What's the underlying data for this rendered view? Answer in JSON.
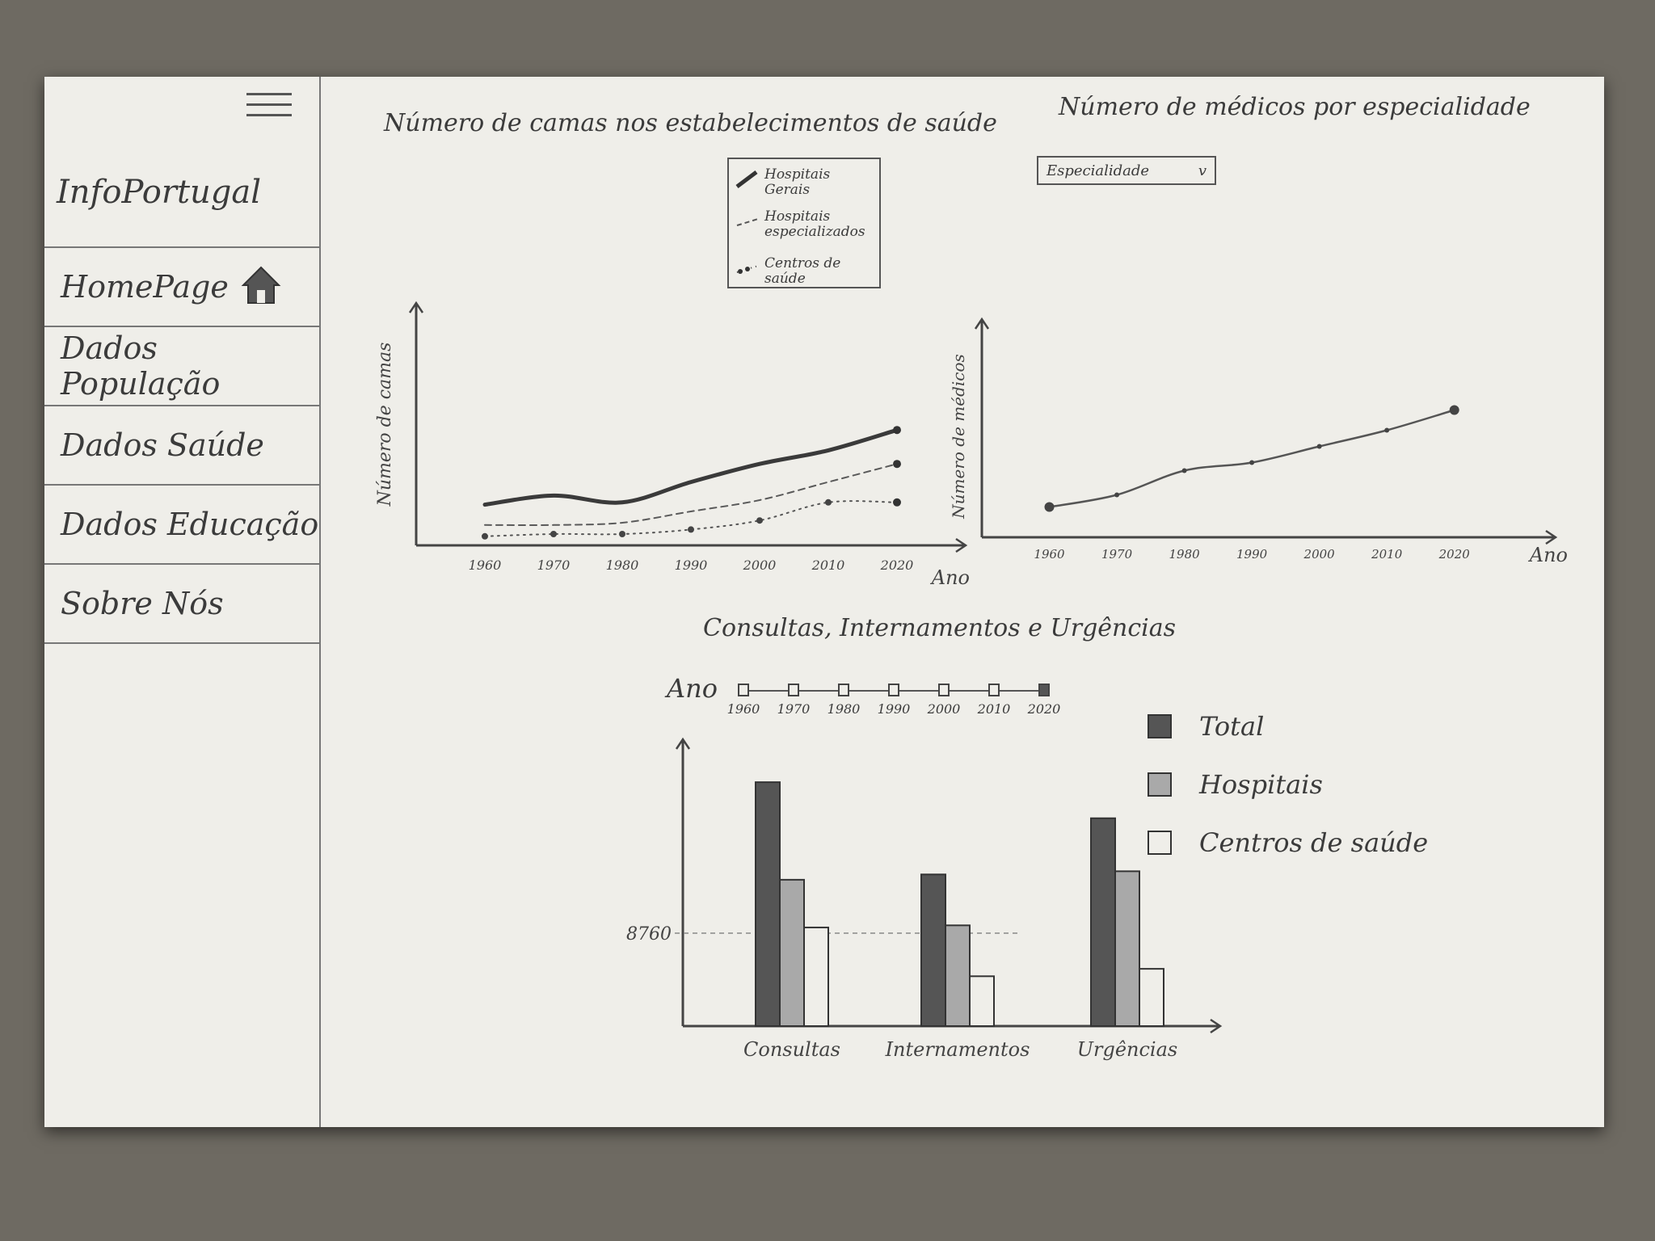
{
  "sidebar": {
    "brand": "InfoPortugal",
    "items": [
      {
        "label": "HomePage",
        "icon": "home-icon"
      },
      {
        "label": "Dados População"
      },
      {
        "label": "Dados Saúde"
      },
      {
        "label": "Dados Educação"
      },
      {
        "label": "Sobre Nós"
      }
    ]
  },
  "beds_chart": {
    "title": "Número de camas nos estabelecimentos de saúde",
    "legend": [
      "Hospitais Gerais",
      "Hospitais especializados",
      "Centros de saúde"
    ]
  },
  "doctors_chart": {
    "title": "Número de médicos por especialidade",
    "select_value": "Especialidade"
  },
  "bars_section": {
    "title": "Consultas, Internamentos e Urgências",
    "slider_label": "Ano",
    "years": [
      "1960",
      "1970",
      "1980",
      "1990",
      "2000",
      "2010",
      "2020"
    ],
    "selected_year": "2020",
    "legend": [
      "Total",
      "Hospitais",
      "Centros de saúde"
    ]
  },
  "colors": {
    "total": "#555555",
    "hospitais": "#a9a9a9",
    "centros": "#efeee9",
    "ink": "#3b3b3b"
  },
  "chart_data": [
    {
      "type": "line",
      "title": "Número de camas nos estabelecimentos de saúde",
      "xlabel": "Ano",
      "ylabel": "Número de camas",
      "x": [
        1960,
        1970,
        1980,
        1990,
        2000,
        2010,
        2020
      ],
      "xlim": [
        1950,
        2030
      ],
      "ylim": [
        0,
        100
      ],
      "legend_position": "top-right",
      "series": [
        {
          "name": "Hospitais Gerais",
          "style": "solid",
          "values": [
            18,
            22,
            19,
            28,
            36,
            42,
            51
          ]
        },
        {
          "name": "Hospitais especializados",
          "style": "dashed",
          "values": [
            9,
            9,
            10,
            15,
            20,
            28,
            36
          ]
        },
        {
          "name": "Centros de saúde",
          "style": "dotted",
          "values": [
            4,
            5,
            5,
            7,
            11,
            19,
            19
          ]
        }
      ]
    },
    {
      "type": "line",
      "title": "Número de médicos por especialidade",
      "xlabel": "Ano",
      "ylabel": "Número de médicos",
      "x": [
        1960,
        1970,
        1980,
        1990,
        2000,
        2010,
        2020
      ],
      "xlim": [
        1950,
        2035
      ],
      "ylim": [
        0,
        100
      ],
      "series": [
        {
          "values": [
            15,
            21,
            33,
            37,
            45,
            53,
            63
          ]
        }
      ]
    },
    {
      "type": "bar",
      "categories": [
        "Consultas",
        "Internamentos",
        "Urgências"
      ],
      "y_reference": 8760,
      "ylim": [
        0,
        24000
      ],
      "series": [
        {
          "name": "Total",
          "values": [
            23000,
            14300,
            19600
          ]
        },
        {
          "name": "Hospitais",
          "values": [
            13800,
            9500,
            14600
          ]
        },
        {
          "name": "Centros de saúde",
          "values": [
            9300,
            4700,
            5400
          ]
        }
      ]
    }
  ]
}
